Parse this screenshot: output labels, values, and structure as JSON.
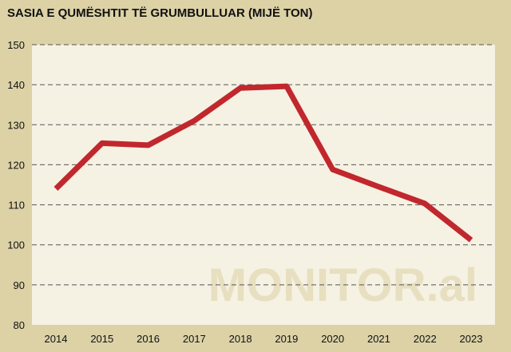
{
  "chart_data": {
    "type": "line",
    "title": "SASIA E QUMËSHTIT TË GRUMBULLUAR (MIJË TON)",
    "xlabel": "",
    "ylabel": "",
    "x": [
      "2014",
      "2015",
      "2016",
      "2017",
      "2018",
      "2019",
      "2020",
      "2021",
      "2022",
      "2023"
    ],
    "y_ticks": [
      "80",
      "90",
      "100",
      "110",
      "120",
      "130",
      "140",
      "150"
    ],
    "ylim": [
      80,
      150
    ],
    "grid": true,
    "series": [
      {
        "values": [
          114,
          125.4,
          124.9,
          131,
          139.2,
          139.6,
          118.8,
          114.5,
          110.3,
          101.2
        ]
      }
    ],
    "line_color": "#c1272d",
    "plot_bg": "#f5f1e3",
    "watermark": "MONITOR.al"
  }
}
